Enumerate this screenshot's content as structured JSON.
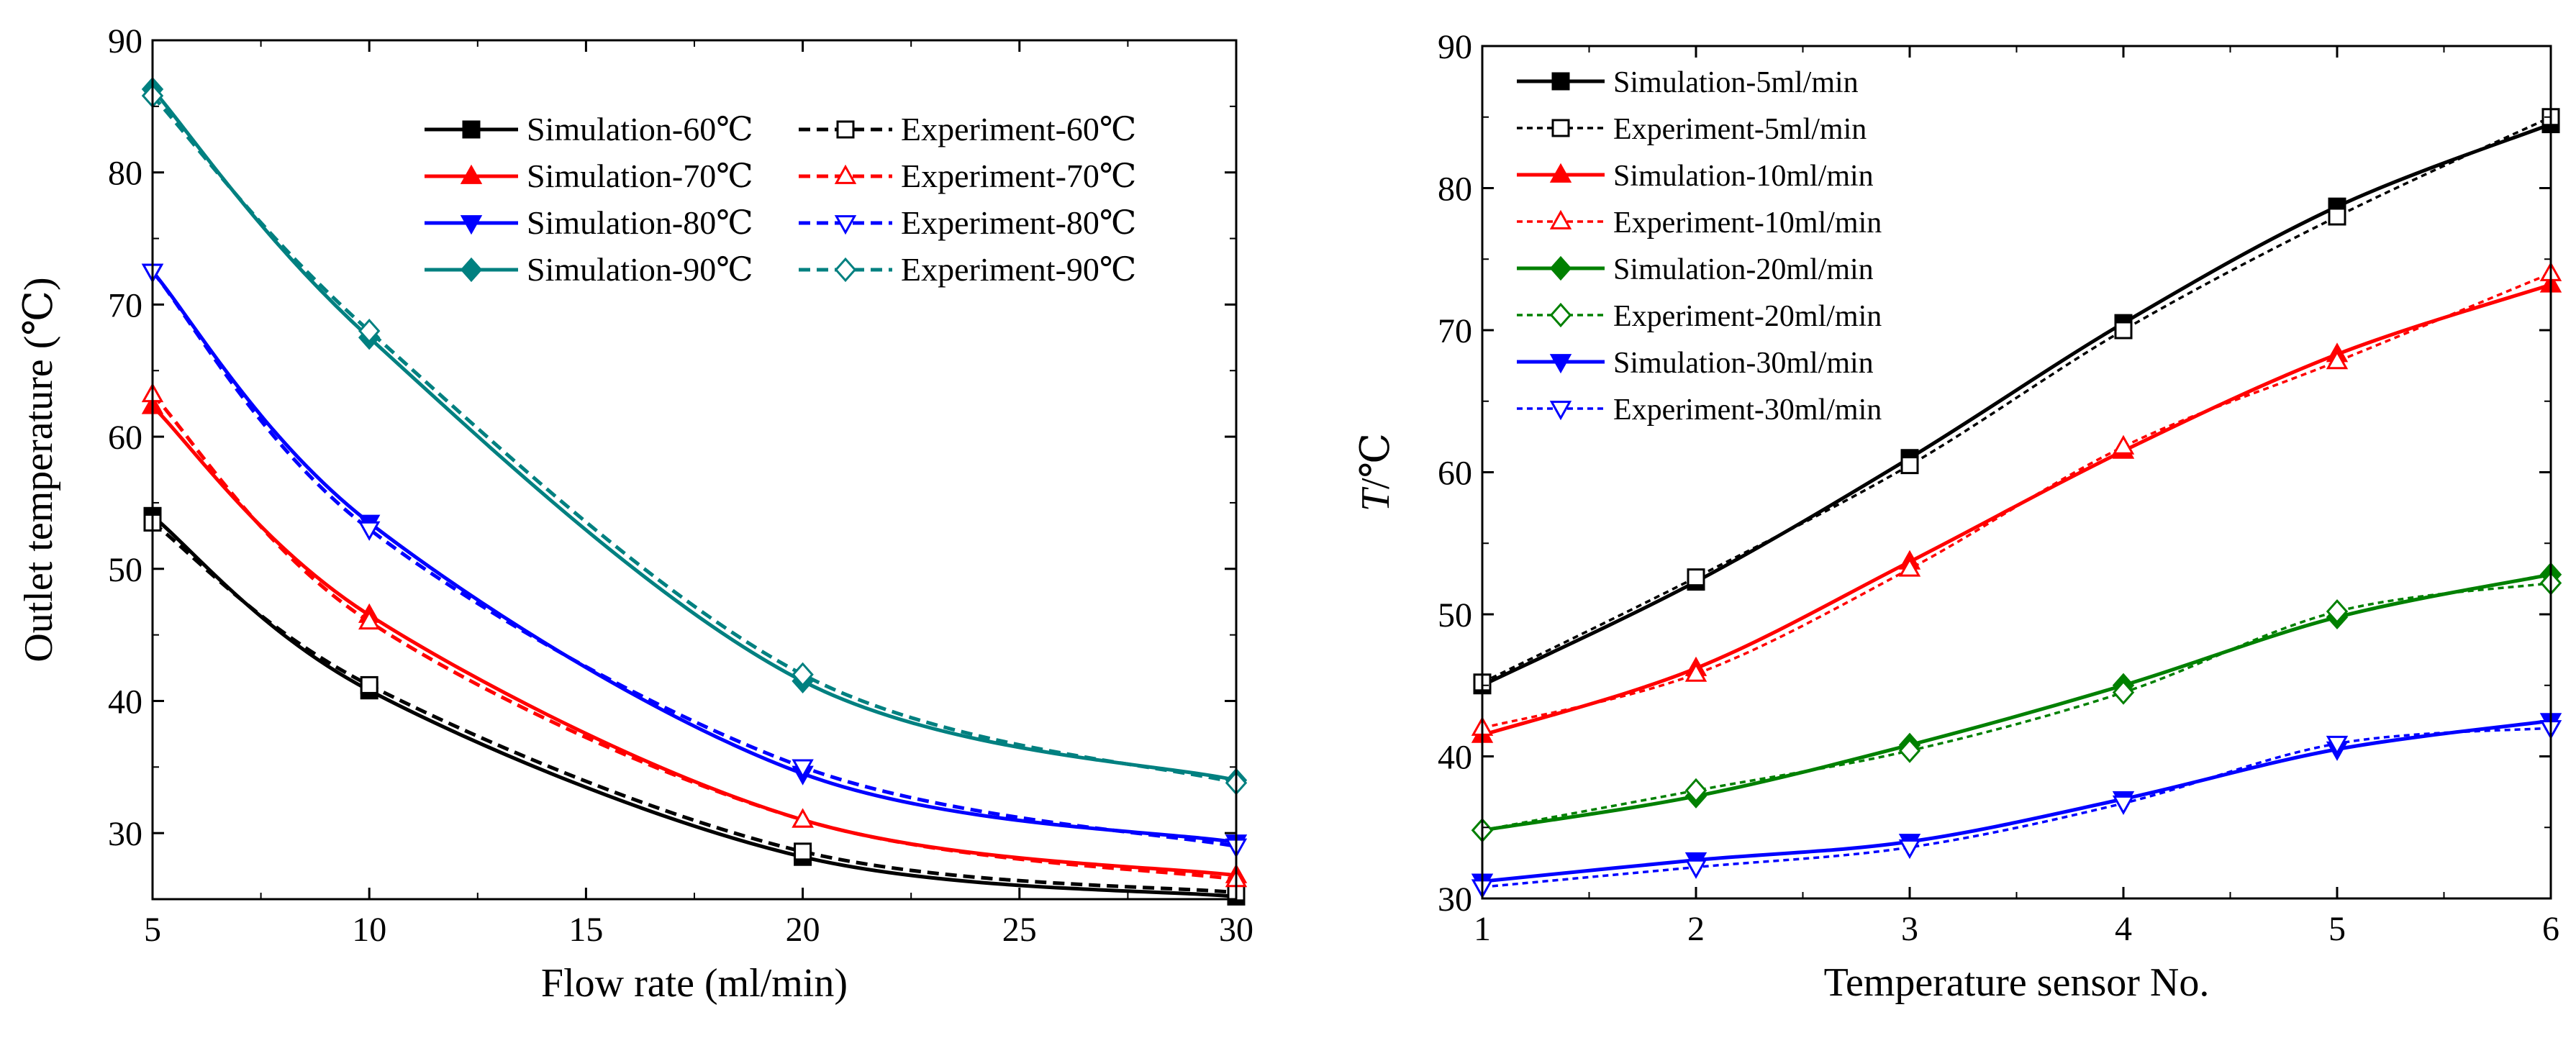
{
  "chart_data": [
    {
      "type": "line",
      "xlabel": "Flow rate (ml/min)",
      "ylabel": "Outlet temperature (℃)",
      "xlim": [
        5,
        30
      ],
      "ylim": [
        25,
        90
      ],
      "xticks": [
        5,
        10,
        15,
        20,
        25,
        30
      ],
      "yticks": [
        30,
        40,
        50,
        60,
        70,
        80,
        90
      ],
      "x": [
        5,
        10,
        20,
        30
      ],
      "legend_position": "top-right",
      "series": [
        {
          "name": "Simulation-60℃",
          "color": "#000000",
          "dash": "solid",
          "marker": "square",
          "filled": true,
          "values": [
            54.0,
            40.8,
            28.2,
            25.2
          ]
        },
        {
          "name": "Experiment-60℃",
          "color": "#000000",
          "dash": "dashed",
          "marker": "square",
          "filled": false,
          "values": [
            53.5,
            41.2,
            28.6,
            25.5
          ]
        },
        {
          "name": "Simulation-70℃",
          "color": "#ff0000",
          "dash": "solid",
          "marker": "triangle-up",
          "filled": true,
          "values": [
            62.3,
            46.5,
            31.0,
            26.8
          ]
        },
        {
          "name": "Experiment-70℃",
          "color": "#ff0000",
          "dash": "dashed",
          "marker": "triangle-up",
          "filled": false,
          "values": [
            63.2,
            46.0,
            31.0,
            26.5
          ]
        },
        {
          "name": "Simulation-80℃",
          "color": "#0000ff",
          "dash": "solid",
          "marker": "triangle-down",
          "filled": true,
          "values": [
            72.5,
            53.5,
            34.5,
            29.3
          ]
        },
        {
          "name": "Experiment-80℃",
          "color": "#0000ff",
          "dash": "dashed",
          "marker": "triangle-down",
          "filled": false,
          "values": [
            72.5,
            53.0,
            35.0,
            29.0
          ]
        },
        {
          "name": "Simulation-90℃",
          "color": "#008080",
          "dash": "solid",
          "marker": "diamond",
          "filled": true,
          "values": [
            86.3,
            67.5,
            41.5,
            34.0
          ]
        },
        {
          "name": "Experiment-90℃",
          "color": "#008080",
          "dash": "dashed",
          "marker": "diamond",
          "filled": false,
          "values": [
            85.8,
            68.0,
            42.0,
            33.8
          ]
        }
      ]
    },
    {
      "type": "line",
      "xlabel": "Temperature sensor No.",
      "ylabel": "T/℃",
      "xlim": [
        1,
        6
      ],
      "ylim": [
        30,
        90
      ],
      "xticks": [
        1,
        2,
        3,
        4,
        5,
        6
      ],
      "yticks": [
        30,
        40,
        50,
        60,
        70,
        80,
        90
      ],
      "x": [
        1,
        2,
        3,
        4,
        5,
        6
      ],
      "legend_position": "top-left",
      "series": [
        {
          "name": "Simulation-5ml/min",
          "color": "#000000",
          "dash": "solid",
          "marker": "square",
          "filled": true,
          "values": [
            45.0,
            52.3,
            61.0,
            70.5,
            78.7,
            84.5
          ]
        },
        {
          "name": "Experiment-5ml/min",
          "color": "#000000",
          "dash": "dotted",
          "marker": "square",
          "filled": false,
          "values": [
            45.2,
            52.6,
            60.5,
            70.0,
            78.0,
            85.0
          ]
        },
        {
          "name": "Simulation-10ml/min",
          "color": "#ff0000",
          "dash": "solid",
          "marker": "triangle-up",
          "filled": true,
          "values": [
            41.5,
            46.2,
            53.7,
            61.5,
            68.3,
            73.2
          ]
        },
        {
          "name": "Experiment-10ml/min",
          "color": "#ff0000",
          "dash": "dotted",
          "marker": "triangle-up",
          "filled": false,
          "values": [
            42.0,
            45.8,
            53.2,
            61.8,
            67.8,
            74.0
          ]
        },
        {
          "name": "Simulation-20ml/min",
          "color": "#008000",
          "dash": "solid",
          "marker": "diamond",
          "filled": true,
          "values": [
            34.8,
            37.2,
            40.8,
            45.0,
            49.8,
            52.8
          ]
        },
        {
          "name": "Experiment-20ml/min",
          "color": "#008000",
          "dash": "dotted",
          "marker": "diamond",
          "filled": false,
          "values": [
            34.8,
            37.6,
            40.4,
            44.5,
            50.2,
            52.2
          ]
        },
        {
          "name": "Simulation-30ml/min",
          "color": "#0000ff",
          "dash": "solid",
          "marker": "triangle-down",
          "filled": true,
          "values": [
            31.2,
            32.7,
            34.0,
            37.0,
            40.5,
            42.5
          ]
        },
        {
          "name": "Experiment-30ml/min",
          "color": "#0000ff",
          "dash": "dotted",
          "marker": "triangle-down",
          "filled": false,
          "values": [
            30.8,
            32.2,
            33.6,
            36.7,
            40.9,
            42.0
          ]
        }
      ]
    }
  ]
}
